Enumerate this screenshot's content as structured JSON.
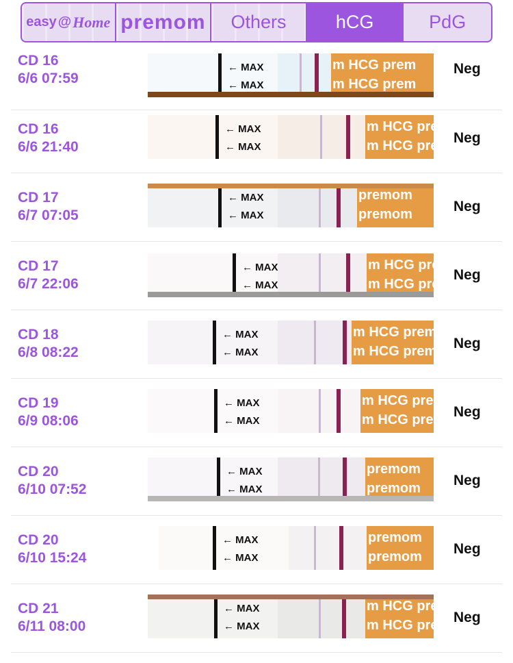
{
  "tabs": {
    "easy_home": {
      "left": "easy",
      "at": "@",
      "right": "Home"
    },
    "premom": "premom",
    "others": "Others",
    "hcg": "hCG",
    "pdg": "PdG"
  },
  "strip_text": {
    "max": "MAX",
    "pad_hcg": "m HCG prem",
    "pad_premom": "premom"
  },
  "colors": {
    "accent": "#9b55de",
    "test_line": "#8a2150",
    "pad": "#e59c45"
  },
  "rows": [
    {
      "cd": "CD 16",
      "datetime": "6/6 07:59",
      "result": "Neg"
    },
    {
      "cd": "CD 16",
      "datetime": "6/6 21:40",
      "result": "Neg"
    },
    {
      "cd": "CD 17",
      "datetime": "6/7 07:05",
      "result": "Neg"
    },
    {
      "cd": "CD 17",
      "datetime": "6/7 22:06",
      "result": "Neg"
    },
    {
      "cd": "CD 18",
      "datetime": "6/8 08:22",
      "result": "Neg"
    },
    {
      "cd": "CD 19",
      "datetime": "6/9 08:06",
      "result": "Neg"
    },
    {
      "cd": "CD 20",
      "datetime": "6/10 07:52",
      "result": "Neg"
    },
    {
      "cd": "CD 20",
      "datetime": "6/10 15:24",
      "result": "Neg"
    },
    {
      "cd": "CD 21",
      "datetime": "6/11 08:00",
      "result": "Neg"
    }
  ]
}
